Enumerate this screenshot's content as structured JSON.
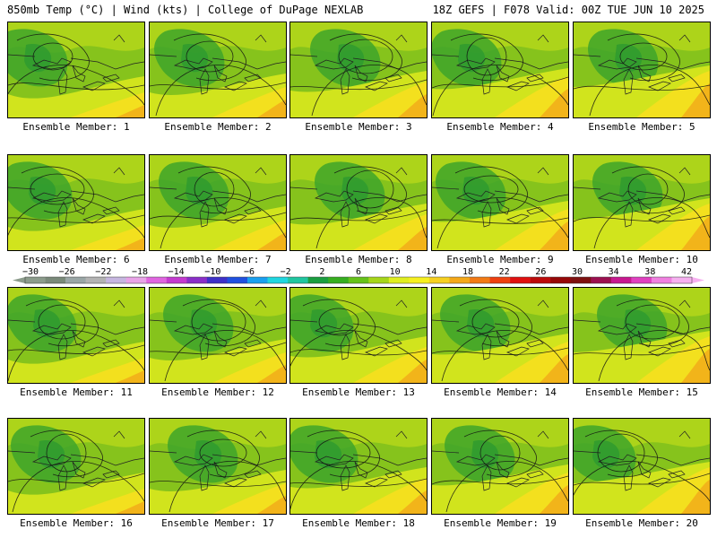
{
  "header": {
    "title_left": "850mb Temp (°C) | Wind (kts) | College of DuPage NEXLAB",
    "title_right": "18Z GEFS | F078 Valid: 00Z TUE JUN 10 2025"
  },
  "legend": {
    "labels": [
      "−30",
      "−26",
      "−22",
      "−18",
      "−14",
      "−10",
      "−6",
      "−2",
      "2",
      "6",
      "10",
      "14",
      "18",
      "22",
      "26",
      "30",
      "34",
      "38",
      "42"
    ],
    "colors": [
      "#8c9c8c",
      "#7a8a7a",
      "#9aa6a6",
      "#b3b3b3",
      "#c6b6e0",
      "#e9a3e8",
      "#e065e0",
      "#c43ad0",
      "#8a2ec8",
      "#3e30c8",
      "#2050e0",
      "#1aa0f0",
      "#20d6e0",
      "#20c6a0",
      "#1a9e40",
      "#36ae20",
      "#66c21a",
      "#a6d61a",
      "#e0ee20",
      "#f6f020",
      "#f6d020",
      "#f4a818",
      "#f27a14",
      "#ee4010",
      "#e01010",
      "#bc0a0a",
      "#960808",
      "#7e1010",
      "#9c1050",
      "#c81890",
      "#e040c0",
      "#f080e0",
      "#f6b0f0"
    ]
  },
  "panels": [
    {
      "label": "Ensemble Member: 1"
    },
    {
      "label": "Ensemble Member: 2"
    },
    {
      "label": "Ensemble Member: 3"
    },
    {
      "label": "Ensemble Member: 4"
    },
    {
      "label": "Ensemble Member: 5"
    },
    {
      "label": "Ensemble Member: 6"
    },
    {
      "label": "Ensemble Member: 7"
    },
    {
      "label": "Ensemble Member: 8"
    },
    {
      "label": "Ensemble Member: 9"
    },
    {
      "label": "Ensemble Member: 10"
    },
    {
      "label": "Ensemble Member: 11"
    },
    {
      "label": "Ensemble Member: 12"
    },
    {
      "label": "Ensemble Member: 13"
    },
    {
      "label": "Ensemble Member: 14"
    },
    {
      "label": "Ensemble Member: 15"
    },
    {
      "label": "Ensemble Member: 16"
    },
    {
      "label": "Ensemble Member: 17"
    },
    {
      "label": "Ensemble Member: 18"
    },
    {
      "label": "Ensemble Member: 19"
    },
    {
      "label": "Ensemble Member: 20"
    }
  ]
}
